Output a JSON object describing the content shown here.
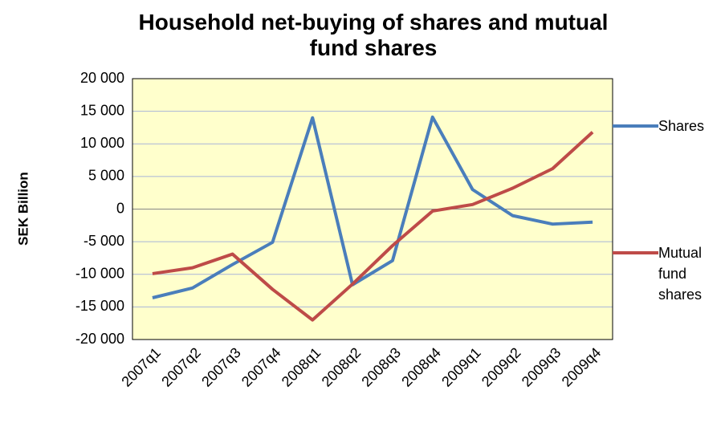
{
  "chart_data": {
    "type": "line",
    "title": "Household net-buying of shares and mutual fund shares",
    "ylabel": "SEK Billion",
    "categories": [
      "2007q1",
      "2007q2",
      "2007q3",
      "2007q4",
      "2008q1",
      "2008q2",
      "2008q3",
      "2008q4",
      "2009q1",
      "2009q2",
      "2009q3",
      "2009q4"
    ],
    "series": [
      {
        "name": "Shares",
        "color": "#4a7ebb",
        "values": [
          -13600,
          -12100,
          -8500,
          -5100,
          14000,
          -11600,
          -7900,
          14100,
          3000,
          -1000,
          -2300,
          -2000
        ]
      },
      {
        "name": "Mutual fund shares",
        "color": "#be4b48",
        "values": [
          -9900,
          -9000,
          -6900,
          -12300,
          -17000,
          -11500,
          -5600,
          -300,
          700,
          3200,
          6200,
          11800
        ]
      }
    ],
    "ylim": [
      -20000,
      20000
    ],
    "yticks": [
      {
        "value": -20000,
        "label": "-20 000"
      },
      {
        "value": -15000,
        "label": "-15 000"
      },
      {
        "value": -10000,
        "label": "-10 000"
      },
      {
        "value": -5000,
        "label": "-5 000"
      },
      0,
      {
        "value": 5000,
        "label": "5 000"
      },
      {
        "value": 10000,
        "label": "10 000"
      },
      {
        "value": 15000,
        "label": "15 000"
      },
      {
        "value": 20000,
        "label": "20 000"
      }
    ],
    "grid": true,
    "legend": "right",
    "background": "#ffffcc"
  }
}
